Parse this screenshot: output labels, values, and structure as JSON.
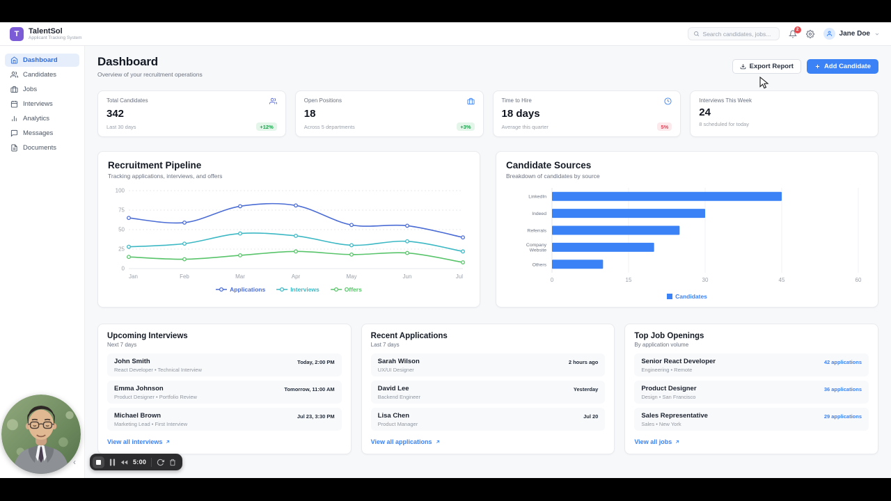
{
  "brand": {
    "logo_letter": "T",
    "name": "TalentSol",
    "subtitle": "Applicant Tracking System"
  },
  "header": {
    "search_placeholder": "Search candidates, jobs...",
    "notification_count": "2",
    "user_name": "Jane Doe"
  },
  "sidebar": {
    "items": [
      {
        "label": "Dashboard",
        "icon": "home",
        "active": true
      },
      {
        "label": "Candidates",
        "icon": "users",
        "active": false
      },
      {
        "label": "Jobs",
        "icon": "briefcase",
        "active": false
      },
      {
        "label": "Interviews",
        "icon": "calendar",
        "active": false
      },
      {
        "label": "Analytics",
        "icon": "bar-chart",
        "active": false
      },
      {
        "label": "Messages",
        "icon": "message-square",
        "active": false
      },
      {
        "label": "Documents",
        "icon": "file-text",
        "active": false
      }
    ]
  },
  "page": {
    "title": "Dashboard",
    "subtitle": "Overview of your recruitment operations",
    "export_label": "Export Report",
    "add_label": "Add Candidate"
  },
  "stats": [
    {
      "label": "Total Candidates",
      "value": "342",
      "sub": "Last 30 days",
      "badge": "+12%",
      "badge_type": "positive",
      "icon": "users"
    },
    {
      "label": "Open Positions",
      "value": "18",
      "sub": "Across 5 departments",
      "badge": "+3%",
      "badge_type": "positive",
      "icon": "briefcase"
    },
    {
      "label": "Time to Hire",
      "value": "18 days",
      "sub": "Average this quarter",
      "badge": "5%",
      "badge_type": "negative",
      "icon": "clock"
    },
    {
      "label": "Interviews This Week",
      "value": "24",
      "sub": "8 scheduled for today",
      "badge": "",
      "badge_type": "none",
      "icon": ""
    }
  ],
  "chart_data": [
    {
      "type": "line",
      "title": "Recruitment Pipeline",
      "subtitle": "Tracking applications, interviews, and offers",
      "x": [
        "Jan",
        "Feb",
        "Mar",
        "Apr",
        "May",
        "Jun",
        "Jul"
      ],
      "ylim": [
        0,
        100
      ],
      "yticks": [
        0,
        25,
        50,
        75,
        100
      ],
      "grid": true,
      "legend_position": "bottom",
      "series": [
        {
          "name": "Applications",
          "color": "#4a6cd4",
          "values": [
            65,
            59,
            80,
            81,
            56,
            55,
            40
          ]
        },
        {
          "name": "Interviews",
          "color": "#3cb8c4",
          "values": [
            28,
            32,
            45,
            42,
            30,
            35,
            22
          ]
        },
        {
          "name": "Offers",
          "color": "#58c46a",
          "values": [
            15,
            12,
            17,
            22,
            18,
            20,
            8
          ]
        }
      ]
    },
    {
      "type": "bar",
      "orientation": "horizontal",
      "title": "Candidate Sources",
      "subtitle": "Breakdown of candidates by source",
      "categories": [
        "LinkedIn",
        "Indeed",
        "Referrals",
        "Company Website",
        "Others"
      ],
      "values": [
        45,
        30,
        25,
        20,
        10
      ],
      "xlim": [
        0,
        60
      ],
      "xticks": [
        0,
        15,
        30,
        45,
        60
      ],
      "bar_color": "#3b82f6",
      "legend": "Candidates",
      "legend_position": "bottom"
    }
  ],
  "lists": [
    {
      "title": "Upcoming Interviews",
      "subtitle": "Next 7 days",
      "view_all": "View all interviews",
      "items": [
        {
          "primary": "John Smith",
          "secondary": "React Developer • Technical Interview",
          "meta": "Today, 2:00 PM"
        },
        {
          "primary": "Emma Johnson",
          "secondary": "Product Designer • Portfolio Review",
          "meta": "Tomorrow, 11:00 AM"
        },
        {
          "primary": "Michael Brown",
          "secondary": "Marketing Lead • First Interview",
          "meta": "Jul 23, 3:30 PM"
        }
      ]
    },
    {
      "title": "Recent Applications",
      "subtitle": "Last 7 days",
      "view_all": "View all applications",
      "items": [
        {
          "primary": "Sarah Wilson",
          "secondary": "UX/UI Designer",
          "meta": "2 hours ago"
        },
        {
          "primary": "David Lee",
          "secondary": "Backend Engineer",
          "meta": "Yesterday"
        },
        {
          "primary": "Lisa Chen",
          "secondary": "Product Manager",
          "meta": "Jul 20"
        }
      ]
    },
    {
      "title": "Top Job Openings",
      "subtitle": "By application volume",
      "view_all": "View all jobs",
      "items": [
        {
          "primary": "Senior React Developer",
          "secondary": "Engineering • Remote",
          "meta": "42 applications"
        },
        {
          "primary": "Product Designer",
          "secondary": "Design • San Francisco",
          "meta": "36 applications"
        },
        {
          "primary": "Sales Representative",
          "secondary": "Sales • New York",
          "meta": "29 applications"
        }
      ]
    }
  ],
  "recorder": {
    "time": "5:00"
  },
  "colors": {
    "primary": "#3b82f6",
    "logo_purple": "#7b5cd6",
    "positive_green": "#17a34a",
    "negative_red": "#d84558",
    "bar_blue": "#3b82f6",
    "line_applications": "#4a6cd4",
    "line_interviews": "#3cb8c4",
    "line_offers": "#58c46a"
  }
}
